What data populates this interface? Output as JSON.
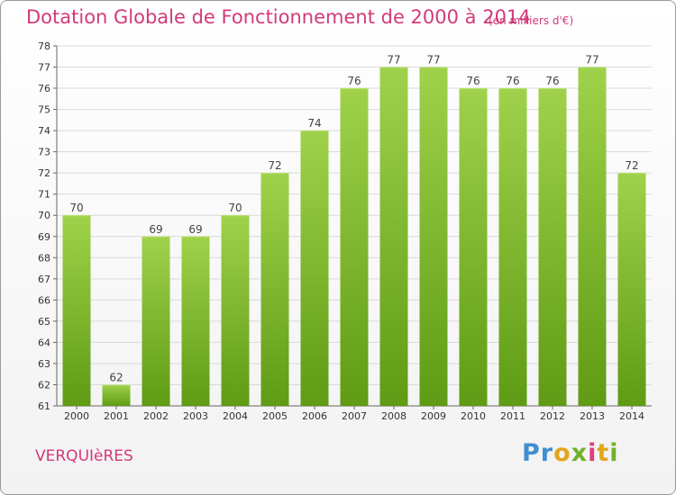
{
  "header": {
    "title": "Dotation Globale de Fonctionnement de 2000 à 2014",
    "unit": "(en milliers d'€)"
  },
  "footer": {
    "commune": "VERQUIèRES",
    "logo_text": "Proxiti"
  },
  "colors": {
    "bar_top": "#9fd24a",
    "bar_bottom": "#5f9b14",
    "title": "#d23a78",
    "grid": "#d9d9d9"
  },
  "chart_data": {
    "type": "bar",
    "categories": [
      "2000",
      "2001",
      "2002",
      "2003",
      "2004",
      "2005",
      "2006",
      "2007",
      "2008",
      "2009",
      "2010",
      "2011",
      "2012",
      "2013",
      "2014"
    ],
    "values": [
      70,
      62,
      69,
      69,
      70,
      72,
      74,
      76,
      77,
      77,
      76,
      76,
      76,
      77,
      72
    ],
    "ylim": [
      61,
      78
    ],
    "yticks": [
      61,
      62,
      63,
      64,
      65,
      66,
      67,
      68,
      69,
      70,
      71,
      72,
      73,
      74,
      75,
      76,
      77,
      78
    ],
    "grid": true,
    "legend": "none",
    "data_labels": true
  }
}
